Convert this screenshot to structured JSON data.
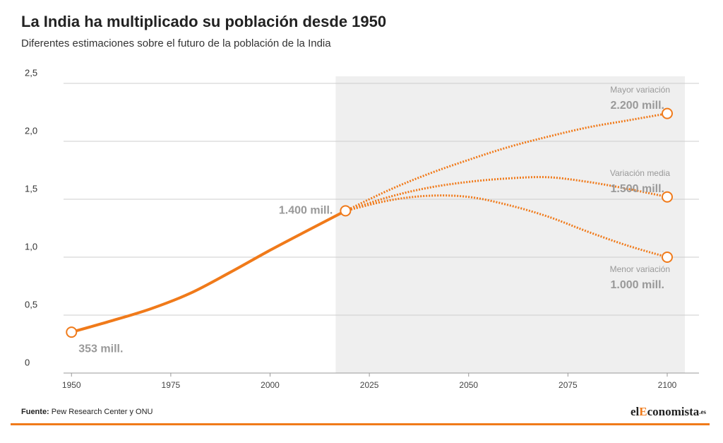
{
  "chart_data": {
    "type": "line",
    "title": "La India ha multiplicado su población desde 1950",
    "subtitle": "Diferentes estimaciones sobre el futuro de la población de la India",
    "xlim": [
      1948,
      2108
    ],
    "xticks": [
      1950,
      1975,
      2000,
      2025,
      2050,
      2075,
      2100
    ],
    "ylim": [
      0,
      2.5
    ],
    "yticks": [
      0,
      {
        "value": 0.5,
        "label": "0,5"
      },
      {
        "value": 1,
        "label": "1,0"
      },
      {
        "value": 1.5,
        "label": "1,5"
      },
      {
        "value": 2,
        "label": "2,0"
      },
      {
        "value": 2.5,
        "label": "2,5"
      }
    ],
    "grid": true,
    "color": "#f07a1a",
    "series": [
      {
        "x": [
          1950,
          1960,
          1970,
          1980,
          1990,
          2000,
          2010,
          2019
        ],
        "values": [
          0.353,
          0.45,
          0.555,
          0.69,
          0.87,
          1.06,
          1.24,
          1.4
        ],
        "dashed": false,
        "start_label": "353 mill.",
        "end_label": "1.400 mill."
      },
      {
        "name": "Mayor variación",
        "x": [
          2019,
          2030,
          2040,
          2050,
          2060,
          2070,
          2080,
          2090,
          2100
        ],
        "values": [
          1.4,
          1.58,
          1.72,
          1.84,
          1.95,
          2.04,
          2.12,
          2.18,
          2.24
        ],
        "dashed": true,
        "end_label": "2.200 mill."
      },
      {
        "name": "Variación media",
        "x": [
          2019,
          2030,
          2040,
          2050,
          2060,
          2070,
          2080,
          2090,
          2100
        ],
        "values": [
          1.4,
          1.52,
          1.6,
          1.65,
          1.68,
          1.69,
          1.65,
          1.59,
          1.52
        ],
        "dashed": true,
        "end_label": "1.500 mill."
      },
      {
        "name": "Menor variación",
        "x": [
          2019,
          2030,
          2040,
          2050,
          2060,
          2070,
          2080,
          2090,
          2100
        ],
        "values": [
          1.4,
          1.49,
          1.53,
          1.52,
          1.45,
          1.35,
          1.22,
          1.1,
          1.0
        ],
        "dashed": true,
        "end_label": "1.000 mill."
      }
    ],
    "source_label": "Fuente:",
    "source": "Pew Research Center y ONU",
    "brand": [
      "el",
      "E",
      "conomista",
      ".es"
    ]
  }
}
